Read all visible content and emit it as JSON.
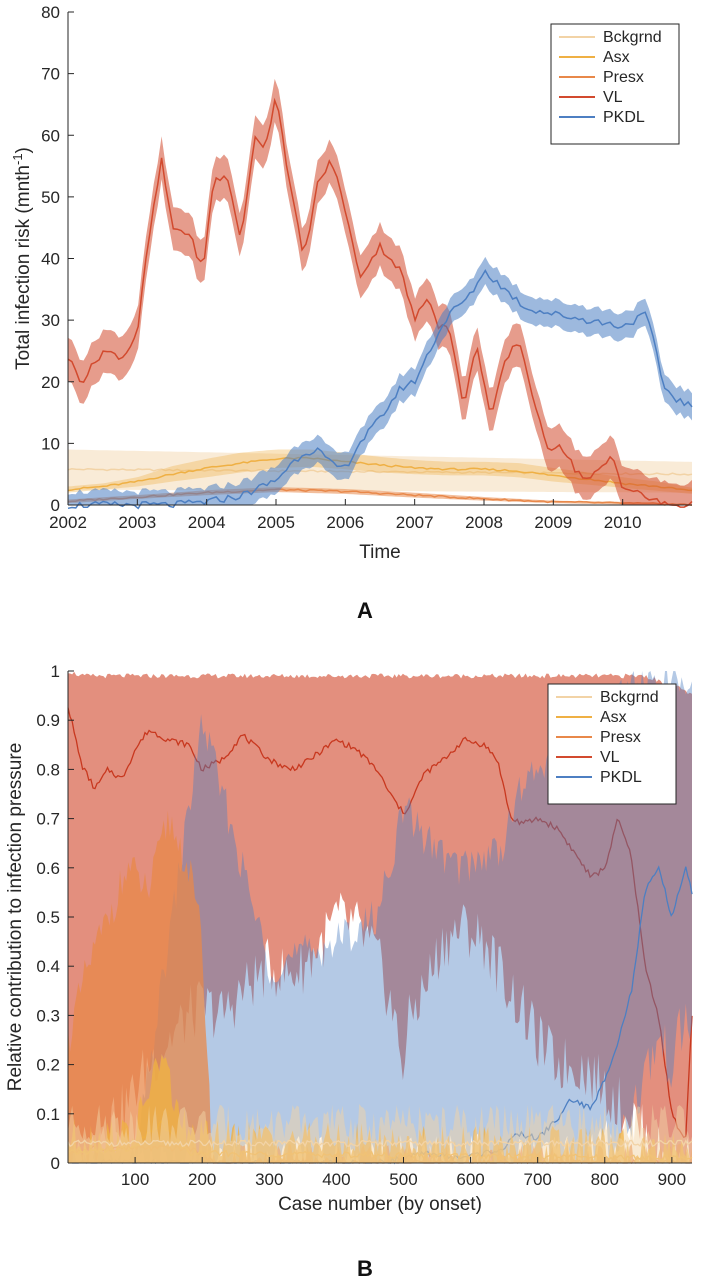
{
  "colors": {
    "Bckgrnd": "#f2d3a6",
    "Asx": "#efb044",
    "Presx": "#e8884a",
    "VL": "#d24a2e",
    "PKDL": "#4d7fc2",
    "axis": "#262626"
  },
  "panels": {
    "a": {
      "letter": "A"
    },
    "b": {
      "letter": "B"
    }
  },
  "chart_data": [
    {
      "type": "line",
      "panel": "A",
      "xlabel": "Time",
      "ylabel": "Total infection risk (mnth",
      "ylabel_sup": "-1",
      "ylabel_end": ")",
      "xlim": [
        2002,
        2011
      ],
      "ylim": [
        0,
        80
      ],
      "xticks": [
        2002,
        2003,
        2004,
        2005,
        2006,
        2007,
        2008,
        2009,
        2010
      ],
      "yticks": [
        0,
        10,
        20,
        30,
        40,
        50,
        60,
        70,
        80
      ],
      "legend_position": "top-right",
      "legend": [
        "Bckgrnd",
        "Asx",
        "Presx",
        "VL",
        "PKDL"
      ],
      "series": [
        {
          "name": "Bckgrnd",
          "x": [
            2002,
            2011
          ],
          "y": [
            5.8,
            5.0
          ],
          "lo": [
            2.5,
            2.0
          ],
          "hi": [
            9.0,
            7.0
          ]
        },
        {
          "name": "Asx",
          "x": [
            2002,
            2002.5,
            2003,
            2003.5,
            2004,
            2004.5,
            2005,
            2005.5,
            2006,
            2006.5,
            2007,
            2007.5,
            2008,
            2008.5,
            2009,
            2009.5,
            2010,
            2010.5,
            2011
          ],
          "y": [
            2.5,
            3.0,
            3.8,
            5.0,
            6.0,
            6.8,
            7.5,
            7.6,
            7.0,
            6.5,
            6.0,
            5.8,
            5.8,
            5.5,
            4.8,
            4.2,
            3.5,
            3.0,
            2.3
          ],
          "lo": [
            2.0,
            2.5,
            3.0,
            3.8,
            4.5,
            5.3,
            6.0,
            6.2,
            5.8,
            5.3,
            5.0,
            4.8,
            4.8,
            4.5,
            3.8,
            3.3,
            2.8,
            2.3,
            1.8
          ],
          "hi": [
            3.0,
            3.5,
            4.5,
            6.3,
            7.5,
            8.5,
            9.0,
            9.0,
            8.5,
            7.8,
            7.3,
            7.0,
            7.0,
            6.8,
            6.0,
            5.3,
            4.5,
            3.8,
            2.8
          ]
        },
        {
          "name": "Presx",
          "x": [
            2002,
            2003,
            2004,
            2005,
            2006,
            2007,
            2008,
            2009,
            2010,
            2010.8,
            2011
          ],
          "y": [
            0.6,
            1.3,
            2.0,
            2.5,
            2.2,
            1.6,
            1.0,
            0.5,
            0.3,
            0.1,
            0.0
          ],
          "lo": [
            0.3,
            1.0,
            1.6,
            2.1,
            1.8,
            1.2,
            0.7,
            0.3,
            0.1,
            0.0,
            0.0
          ],
          "hi": [
            0.9,
            1.6,
            2.4,
            2.9,
            2.6,
            2.0,
            1.3,
            0.7,
            0.5,
            0.2,
            0.0
          ]
        },
        {
          "name": "VL",
          "x": [
            2002,
            2002.2,
            2002.5,
            2002.8,
            2003,
            2003.15,
            2003.35,
            2003.5,
            2003.75,
            2003.95,
            2004.1,
            2004.3,
            2004.5,
            2004.7,
            2004.85,
            2005.0,
            2005.2,
            2005.4,
            2005.6,
            2005.8,
            2006.0,
            2006.2,
            2006.5,
            2006.8,
            2007.0,
            2007.2,
            2007.35,
            2007.5,
            2007.7,
            2007.9,
            2008.1,
            2008.3,
            2008.5,
            2008.7,
            2008.9,
            2009.1,
            2009.3,
            2009.5,
            2009.7,
            2009.85,
            2010.0,
            2010.2,
            2010.5,
            2010.7,
            2011
          ],
          "y": [
            24,
            20,
            25,
            24,
            28,
            42,
            56,
            45,
            44,
            38,
            53,
            53,
            43,
            60,
            58,
            67,
            52,
            40,
            52,
            56,
            48,
            37,
            42,
            38,
            30,
            34,
            29,
            29,
            16,
            26,
            14,
            23,
            27,
            18,
            9,
            10,
            6,
            4,
            6,
            8,
            3,
            2,
            0.5,
            0,
            0
          ],
          "band": 3.5
        },
        {
          "name": "PKDL",
          "x": [
            2002,
            2003,
            2003.5,
            2004,
            2004.5,
            2005,
            2005.2,
            2005.4,
            2005.6,
            2005.8,
            2006.0,
            2006.2,
            2006.5,
            2006.8,
            2007.0,
            2007.3,
            2007.5,
            2007.8,
            2008.0,
            2008.3,
            2008.6,
            2009.0,
            2009.5,
            2010.0,
            2010.35,
            2010.6,
            2010.8,
            2011
          ],
          "y": [
            0,
            0,
            0,
            0.5,
            1.5,
            4,
            6.5,
            8.5,
            9,
            6.5,
            6,
            10,
            14,
            19,
            20,
            27,
            31,
            34,
            38,
            35,
            32,
            31,
            30,
            29,
            31,
            19,
            17,
            16
          ],
          "band": 2.2
        }
      ]
    },
    {
      "type": "area",
      "panel": "B",
      "xlabel": "Case number (by onset)",
      "ylabel": "Relative contribution to infection pressure",
      "xlim": [
        0,
        930
      ],
      "ylim": [
        0,
        1
      ],
      "xticks": [
        100,
        200,
        300,
        400,
        500,
        600,
        700,
        800,
        900
      ],
      "yticks": [
        0,
        0.1,
        0.2,
        0.3,
        0.4,
        0.5,
        0.6,
        0.7,
        0.8,
        0.9,
        1
      ],
      "legend_position": "top-right",
      "legend": [
        "Bckgrnd",
        "Asx",
        "Presx",
        "VL",
        "PKDL"
      ],
      "series": [
        {
          "name": "VL",
          "x": [
            0,
            20,
            40,
            60,
            80,
            100,
            120,
            150,
            180,
            200,
            230,
            260,
            300,
            330,
            350,
            380,
            400,
            430,
            460,
            480,
            500,
            510,
            530,
            560,
            590,
            620,
            640,
            660,
            680,
            700,
            730,
            760,
            780,
            800,
            820,
            840,
            860,
            880,
            900,
            920,
            930
          ],
          "y": [
            0.93,
            0.81,
            0.76,
            0.8,
            0.78,
            0.84,
            0.88,
            0.86,
            0.85,
            0.8,
            0.82,
            0.87,
            0.82,
            0.8,
            0.81,
            0.84,
            0.86,
            0.84,
            0.8,
            0.75,
            0.71,
            0.73,
            0.79,
            0.82,
            0.86,
            0.85,
            0.82,
            0.7,
            0.69,
            0.7,
            0.68,
            0.62,
            0.58,
            0.6,
            0.7,
            0.62,
            0.4,
            0.3,
            0.1,
            0.04,
            0.3
          ],
          "lo": [
            0.0,
            0.0,
            0.05,
            0.1,
            0.1,
            0.15,
            0.2,
            0.25,
            0.3,
            0.32,
            0.3,
            0.35,
            0.4,
            0.38,
            0.4,
            0.45,
            0.5,
            0.48,
            0.42,
            0.33,
            0.2,
            0.3,
            0.35,
            0.45,
            0.48,
            0.45,
            0.4,
            0.35,
            0.3,
            0.25,
            0.2,
            0.2,
            0.18,
            0.15,
            0.12,
            0.1,
            0.05,
            0.02,
            0.0,
            0.0,
            0.0
          ],
          "hi": [
            1.0,
            0.99,
            0.99,
            0.99,
            0.99,
            0.99,
            0.99,
            0.99,
            0.99,
            0.99,
            0.99,
            0.99,
            0.99,
            0.99,
            0.99,
            0.99,
            0.99,
            0.99,
            0.99,
            0.99,
            0.99,
            0.99,
            0.99,
            0.99,
            0.99,
            0.99,
            0.99,
            0.99,
            0.99,
            0.99,
            0.99,
            0.99,
            0.99,
            0.99,
            0.99,
            0.99,
            0.99,
            0.98,
            0.97,
            0.96,
            0.95
          ]
        },
        {
          "name": "PKDL",
          "x": [
            0,
            100,
            200,
            300,
            400,
            460,
            500,
            540,
            580,
            620,
            650,
            670,
            700,
            730,
            750,
            780,
            800,
            820,
            840,
            860,
            880,
            900,
            920,
            930
          ],
          "y": [
            0,
            0,
            0,
            0,
            0,
            0,
            0.01,
            0.02,
            0.01,
            0.02,
            0.03,
            0.06,
            0.05,
            0.09,
            0.13,
            0.11,
            0.17,
            0.25,
            0.35,
            0.55,
            0.6,
            0.5,
            0.6,
            0.55
          ],
          "lo": [
            0,
            0,
            0,
            0,
            0,
            0,
            0,
            0,
            0,
            0,
            0,
            0,
            0,
            0.01,
            0.02,
            0.02,
            0.03,
            0.05,
            0.1,
            0.18,
            0.25,
            0.2,
            0.3,
            0.25
          ],
          "hi": [
            0,
            0,
            0.9,
            0.4,
            0.45,
            0.5,
            0.72,
            0.65,
            0.6,
            0.62,
            0.65,
            0.75,
            0.8,
            0.85,
            0.88,
            0.9,
            0.92,
            0.95,
            0.97,
            0.98,
            0.98,
            0.98,
            0.97,
            0.97
          ]
        },
        {
          "name": "Presx",
          "x": [
            0,
            30,
            60,
            90,
            120,
            150,
            180,
            200,
            215,
            930
          ],
          "y": [
            0.02,
            0.03,
            0.03,
            0.03,
            0.03,
            0.03,
            0.03,
            0.02,
            0.0,
            0.0
          ],
          "lo": [
            0,
            0,
            0,
            0,
            0,
            0,
            0,
            0,
            0,
            0
          ],
          "hi": [
            0.25,
            0.4,
            0.5,
            0.6,
            0.55,
            0.7,
            0.6,
            0.45,
            0.0,
            0.0
          ]
        },
        {
          "name": "Asx",
          "x": [
            0,
            100,
            120,
            140,
            160,
            180,
            930
          ],
          "y": [
            0.02,
            0.03,
            0.06,
            0.08,
            0.05,
            0.02,
            0.01
          ],
          "lo": [
            0,
            0,
            0,
            0,
            0,
            0,
            0
          ],
          "hi": [
            0.05,
            0.06,
            0.15,
            0.22,
            0.12,
            0.05,
            0.03
          ]
        },
        {
          "name": "Bckgrnd",
          "x": [
            0,
            930
          ],
          "y": [
            0.04,
            0.04
          ],
          "lo": [
            0,
            0
          ],
          "hi": [
            0.08,
            0.08
          ]
        }
      ]
    }
  ]
}
